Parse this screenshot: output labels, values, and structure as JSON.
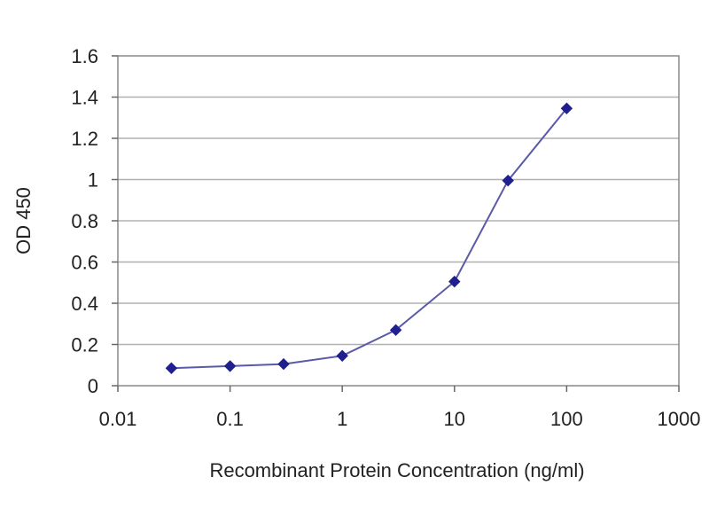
{
  "chart_data": {
    "type": "line",
    "title": "",
    "xlabel": "Recombinant Protein Concentration (ng/ml)",
    "ylabel": "OD 450",
    "x_scale": "log",
    "xlim": [
      0.01,
      1000
    ],
    "ylim": [
      0,
      1.6
    ],
    "x_ticks": [
      0.01,
      0.1,
      1,
      10,
      100,
      1000
    ],
    "x_tick_labels": [
      "0.01",
      "0.1",
      "1",
      "10",
      "100",
      "1000"
    ],
    "y_ticks": [
      0,
      0.2,
      0.4,
      0.6,
      0.8,
      1,
      1.2,
      1.4,
      1.6
    ],
    "y_tick_labels": [
      "0",
      "0.2",
      "0.4",
      "0.6",
      "0.8",
      "1",
      "1.2",
      "1.4",
      "1.6"
    ],
    "grid": "horizontal",
    "legend": "none",
    "series": [
      {
        "x": [
          0.03,
          0.1,
          0.3,
          1,
          3,
          10,
          30,
          100
        ],
        "y": [
          0.085,
          0.095,
          0.105,
          0.145,
          0.27,
          0.505,
          0.995,
          1.345
        ],
        "color": "#1f1f8f",
        "marker": "diamond"
      }
    ],
    "plot_background": "#ffffff",
    "gridline_color": "#b0b0b0"
  }
}
